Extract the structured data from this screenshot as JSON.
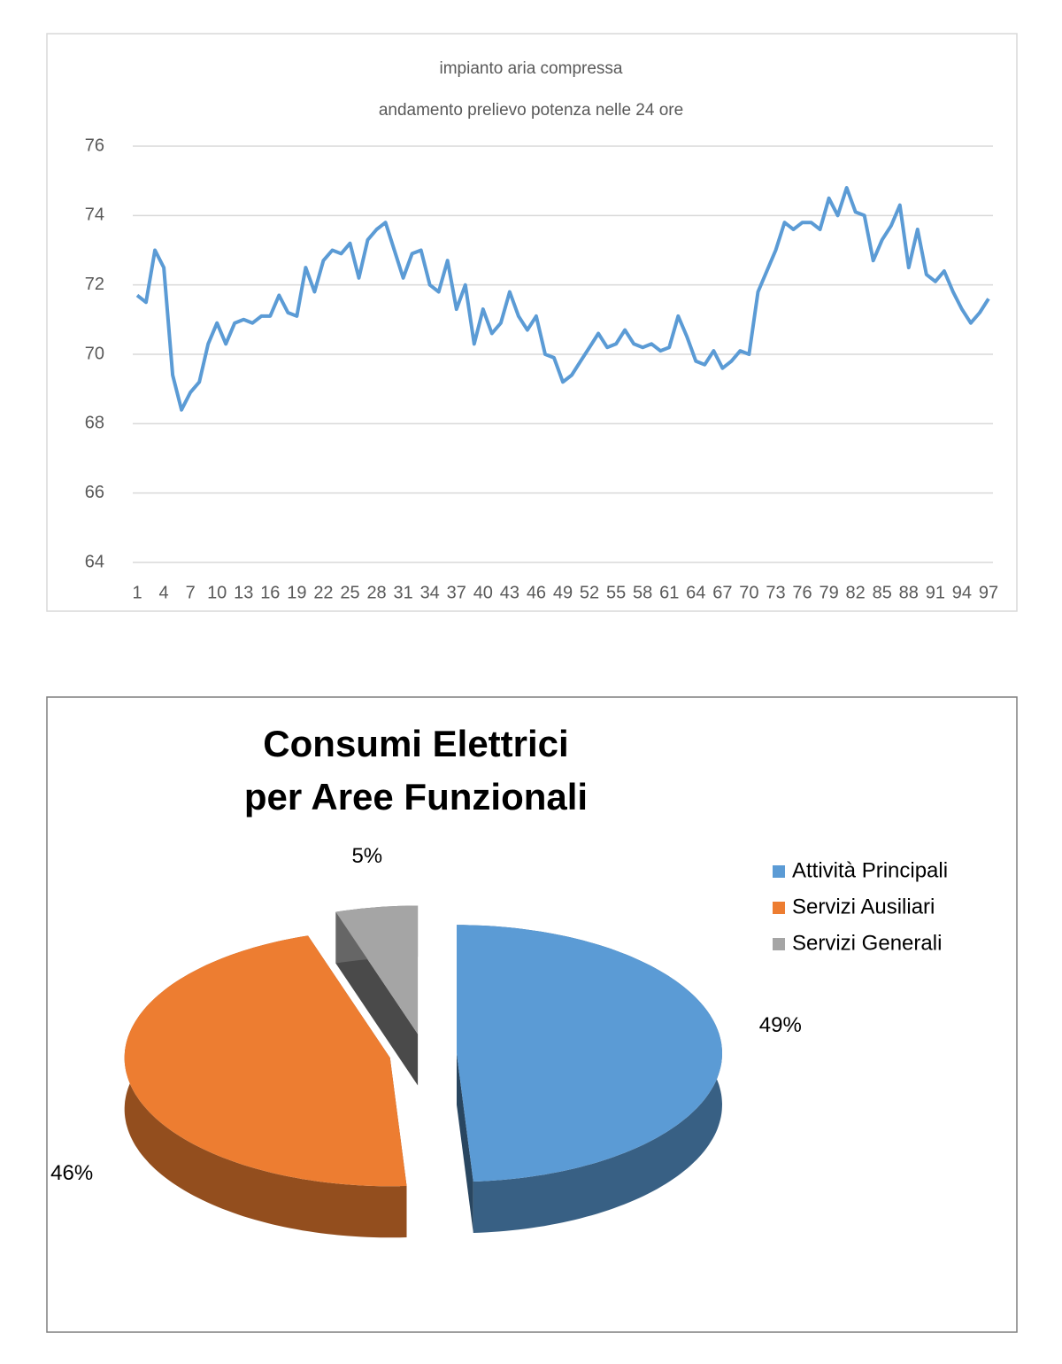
{
  "chart_data": [
    {
      "type": "line",
      "title": "impianto aria compressa",
      "subtitle": "andamento prelievo potenza nelle 24 ore",
      "categories": [
        "1",
        null,
        null,
        "4",
        null,
        null,
        "7",
        null,
        null,
        "10",
        null,
        null,
        "13",
        null,
        null,
        "16",
        null,
        null,
        "19",
        null,
        null,
        "22",
        null,
        null,
        "25",
        null,
        null,
        "28",
        null,
        null,
        "31",
        null,
        null,
        "34",
        null,
        null,
        "37",
        null,
        null,
        "40",
        null,
        null,
        "43",
        null,
        null,
        "46",
        null,
        null,
        "49",
        null,
        null,
        "52",
        null,
        null,
        "55",
        null,
        null,
        "58",
        null,
        null,
        "61",
        null,
        null,
        "64",
        null,
        null,
        "67",
        null,
        null,
        "70",
        null,
        null,
        "73",
        null,
        null,
        "76",
        null,
        null,
        "79",
        null,
        null,
        "82",
        null,
        null,
        "85",
        null,
        null,
        "88",
        null,
        null,
        "91",
        null,
        null,
        "94",
        null,
        null,
        "97"
      ],
      "values": [
        71.7,
        71.5,
        73.0,
        72.5,
        69.4,
        68.4,
        68.9,
        69.2,
        70.3,
        70.9,
        70.3,
        70.9,
        71.0,
        70.9,
        71.1,
        71.1,
        71.7,
        71.2,
        71.1,
        72.5,
        71.8,
        72.7,
        73.0,
        72.9,
        73.2,
        72.2,
        73.3,
        73.6,
        73.8,
        73.0,
        72.2,
        72.9,
        73.0,
        72.0,
        71.8,
        72.7,
        71.3,
        72.0,
        70.3,
        71.3,
        70.6,
        70.9,
        71.8,
        71.1,
        70.7,
        71.1,
        70.0,
        69.9,
        69.2,
        69.4,
        69.8,
        70.2,
        70.6,
        70.2,
        70.3,
        70.7,
        70.3,
        70.2,
        70.3,
        70.1,
        70.2,
        71.1,
        70.5,
        69.8,
        69.7,
        70.1,
        69.6,
        69.8,
        70.1,
        70.0,
        71.8,
        72.4,
        73.0,
        73.8,
        73.6,
        73.8,
        73.8,
        73.6,
        74.5,
        74.0,
        74.8,
        74.1,
        74.0,
        72.7,
        73.3,
        73.7,
        74.3,
        72.5,
        73.6,
        72.3,
        72.1,
        72.4,
        71.8,
        71.3,
        70.9,
        71.2,
        71.6
      ],
      "color": "#5b9bd5",
      "ylim": [
        64,
        76
      ],
      "yticks": [
        64,
        66,
        68,
        70,
        72,
        74,
        76
      ],
      "grid": true
    },
    {
      "type": "pie",
      "title": [
        "Consumi Elettrici",
        "per Aree Funzionali"
      ],
      "categories": [
        "Attività Principali",
        "Servizi Ausiliari",
        "Servizi Generali"
      ],
      "values": [
        49,
        46,
        5
      ],
      "value_labels": [
        "49%",
        "46%",
        "5%"
      ],
      "colors": [
        "#5b9bd5",
        "#ed7d31",
        "#a5a5a5"
      ],
      "legend": "right"
    }
  ]
}
